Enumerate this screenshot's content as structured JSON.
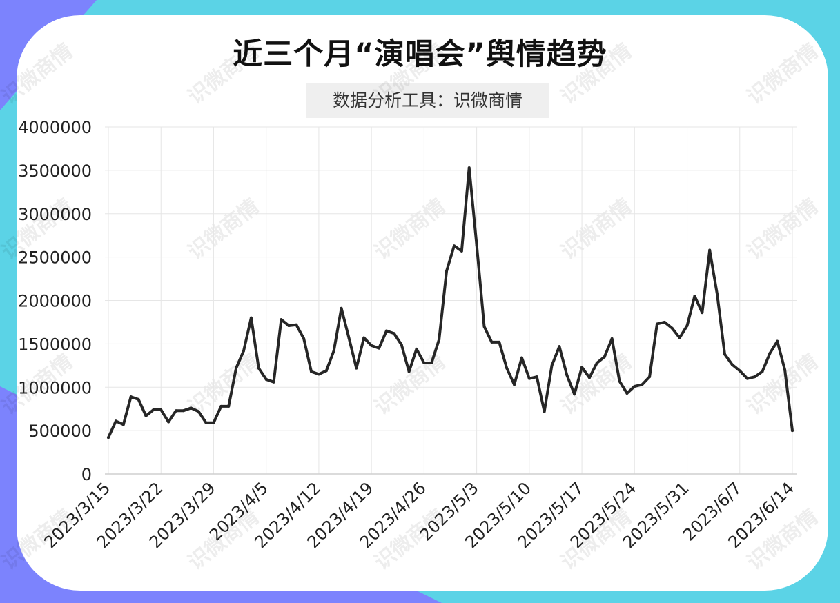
{
  "colors": {
    "background_left": "#7c83fd",
    "background_right": "#5bd3e6",
    "card": "#ffffff",
    "line": "#262626",
    "grid": "#e6e6e6"
  },
  "watermark": "识微商情",
  "chart_data": {
    "type": "line",
    "title": "近三个月“演唱会”舆情趋势",
    "subtitle": "数据分析工具：识微商情",
    "xlabel": "",
    "ylabel": "",
    "ylim": [
      0,
      4000000
    ],
    "yticks": [
      "4000000",
      "3500000",
      "3000000",
      "2500000",
      "2000000",
      "1500000",
      "1000000",
      "500000",
      "0"
    ],
    "xticks": [
      "2023/3/15",
      "2023/3/22",
      "2023/3/29",
      "2023/4/5",
      "2023/4/12",
      "2023/4/19",
      "2023/4/26",
      "2023/5/3",
      "2023/5/10",
      "2023/5/17",
      "2023/5/24",
      "2023/5/31",
      "2023/6/7",
      "2023/6/14"
    ],
    "grid": true,
    "legend": "none",
    "series": [
      {
        "name": "",
        "start_date": "2023/3/15",
        "values": [
          420000,
          610000,
          570000,
          890000,
          860000,
          670000,
          740000,
          740000,
          600000,
          730000,
          730000,
          760000,
          720000,
          590000,
          590000,
          780000,
          780000,
          1220000,
          1420000,
          1800000,
          1220000,
          1090000,
          1060000,
          1780000,
          1710000,
          1720000,
          1560000,
          1180000,
          1150000,
          1190000,
          1420000,
          1910000,
          1570000,
          1220000,
          1570000,
          1480000,
          1450000,
          1650000,
          1620000,
          1490000,
          1180000,
          1440000,
          1280000,
          1280000,
          1550000,
          2340000,
          2630000,
          2570000,
          3530000,
          2640000,
          1700000,
          1520000,
          1520000,
          1220000,
          1030000,
          1340000,
          1100000,
          1120000,
          720000,
          1250000,
          1470000,
          1140000,
          920000,
          1230000,
          1110000,
          1280000,
          1350000,
          1560000,
          1070000,
          930000,
          1010000,
          1030000,
          1120000,
          1730000,
          1750000,
          1680000,
          1570000,
          1710000,
          2050000,
          1860000,
          2580000,
          2070000,
          1380000,
          1260000,
          1190000,
          1100000,
          1120000,
          1180000,
          1390000,
          1530000,
          1200000,
          500000
        ]
      }
    ]
  }
}
